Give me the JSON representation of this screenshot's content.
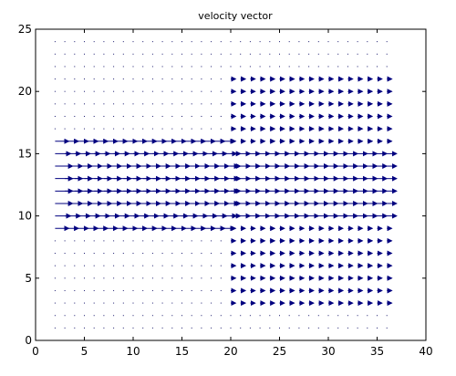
{
  "chart_data": {
    "type": "quiver",
    "title": "velocity vector",
    "xlabel": "",
    "ylabel": "",
    "xlim": [
      0,
      40
    ],
    "ylim": [
      0,
      25
    ],
    "xticks": [
      0,
      5,
      10,
      15,
      20,
      25,
      30,
      35,
      40
    ],
    "yticks": [
      0,
      5,
      10,
      15,
      20,
      25
    ],
    "grid": false,
    "arrow_color": "#00007f",
    "dot_color": "#1a1a6e",
    "grid_x": {
      "start": 2,
      "step": 1,
      "end": 36
    },
    "grid_y": {
      "start": 1,
      "step": 1,
      "end": 24
    },
    "inlet": {
      "x_range": [
        2,
        19
      ],
      "rows": [
        {
          "y": 16,
          "u": 1.4
        },
        {
          "y": 15,
          "u": 1.6
        },
        {
          "y": 14,
          "u": 1.8
        },
        {
          "y": 13,
          "u": 1.8
        },
        {
          "y": 12,
          "u": 1.8
        },
        {
          "y": 11,
          "u": 1.8
        },
        {
          "y": 10,
          "u": 1.6
        },
        {
          "y": 9,
          "u": 1.4
        }
      ]
    },
    "outlet": {
      "x_range": [
        20,
        36
      ],
      "y_range": [
        3,
        21
      ],
      "core_rows": [
        10,
        11,
        12,
        13,
        14,
        15
      ],
      "core_u": 1.0,
      "outer_u": 0.5
    }
  }
}
